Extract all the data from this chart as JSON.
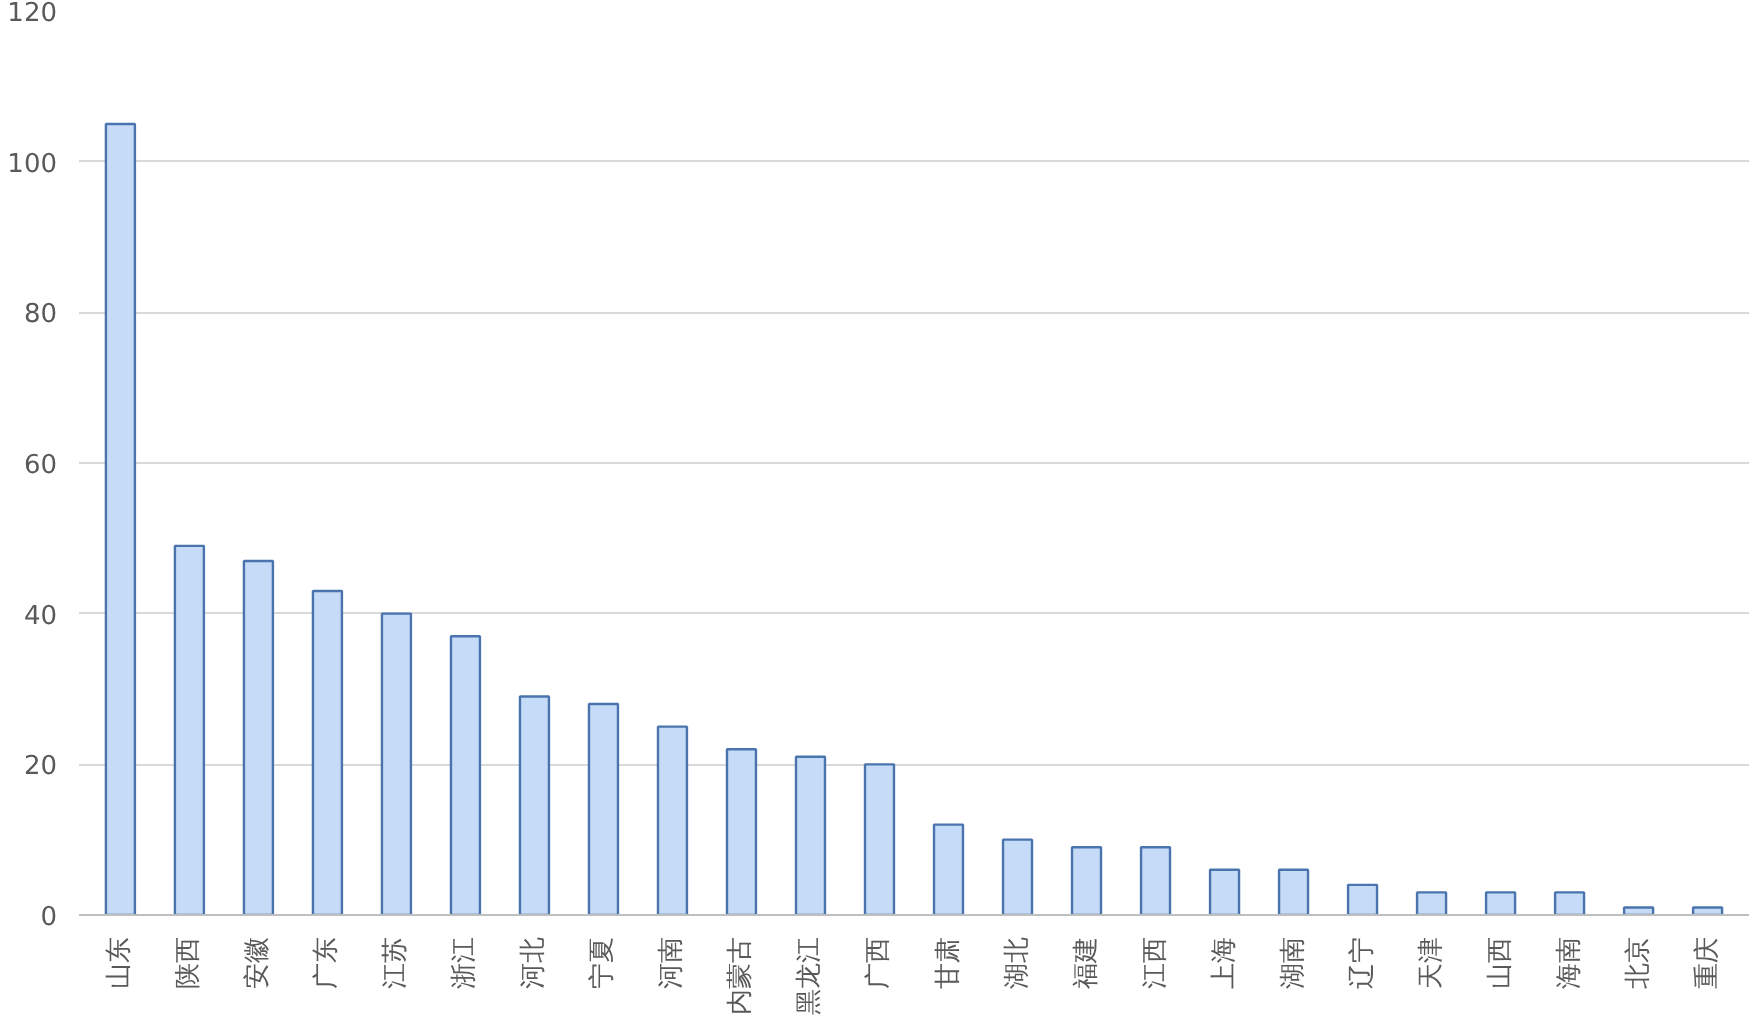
{
  "chart_data": {
    "type": "bar",
    "categories": [
      "山东",
      "陕西",
      "安徽",
      "广东",
      "江苏",
      "浙江",
      "河北",
      "宁夏",
      "河南",
      "内蒙古",
      "黑龙江",
      "广西",
      "甘肃",
      "湖北",
      "福建",
      "江西",
      "上海",
      "湖南",
      "辽宁",
      "天津",
      "山西",
      "海南",
      "北京",
      "重庆"
    ],
    "values": [
      105,
      49,
      47,
      43,
      40,
      37,
      29,
      28,
      25,
      22,
      21,
      20,
      12,
      10,
      9,
      9,
      6,
      6,
      4,
      3,
      3,
      3,
      1,
      1
    ],
    "color": "#c6dbf7",
    "ylim": [
      0,
      120
    ],
    "yticks": [
      0,
      20,
      40,
      60,
      80,
      100,
      120
    ],
    "grid": "y"
  }
}
